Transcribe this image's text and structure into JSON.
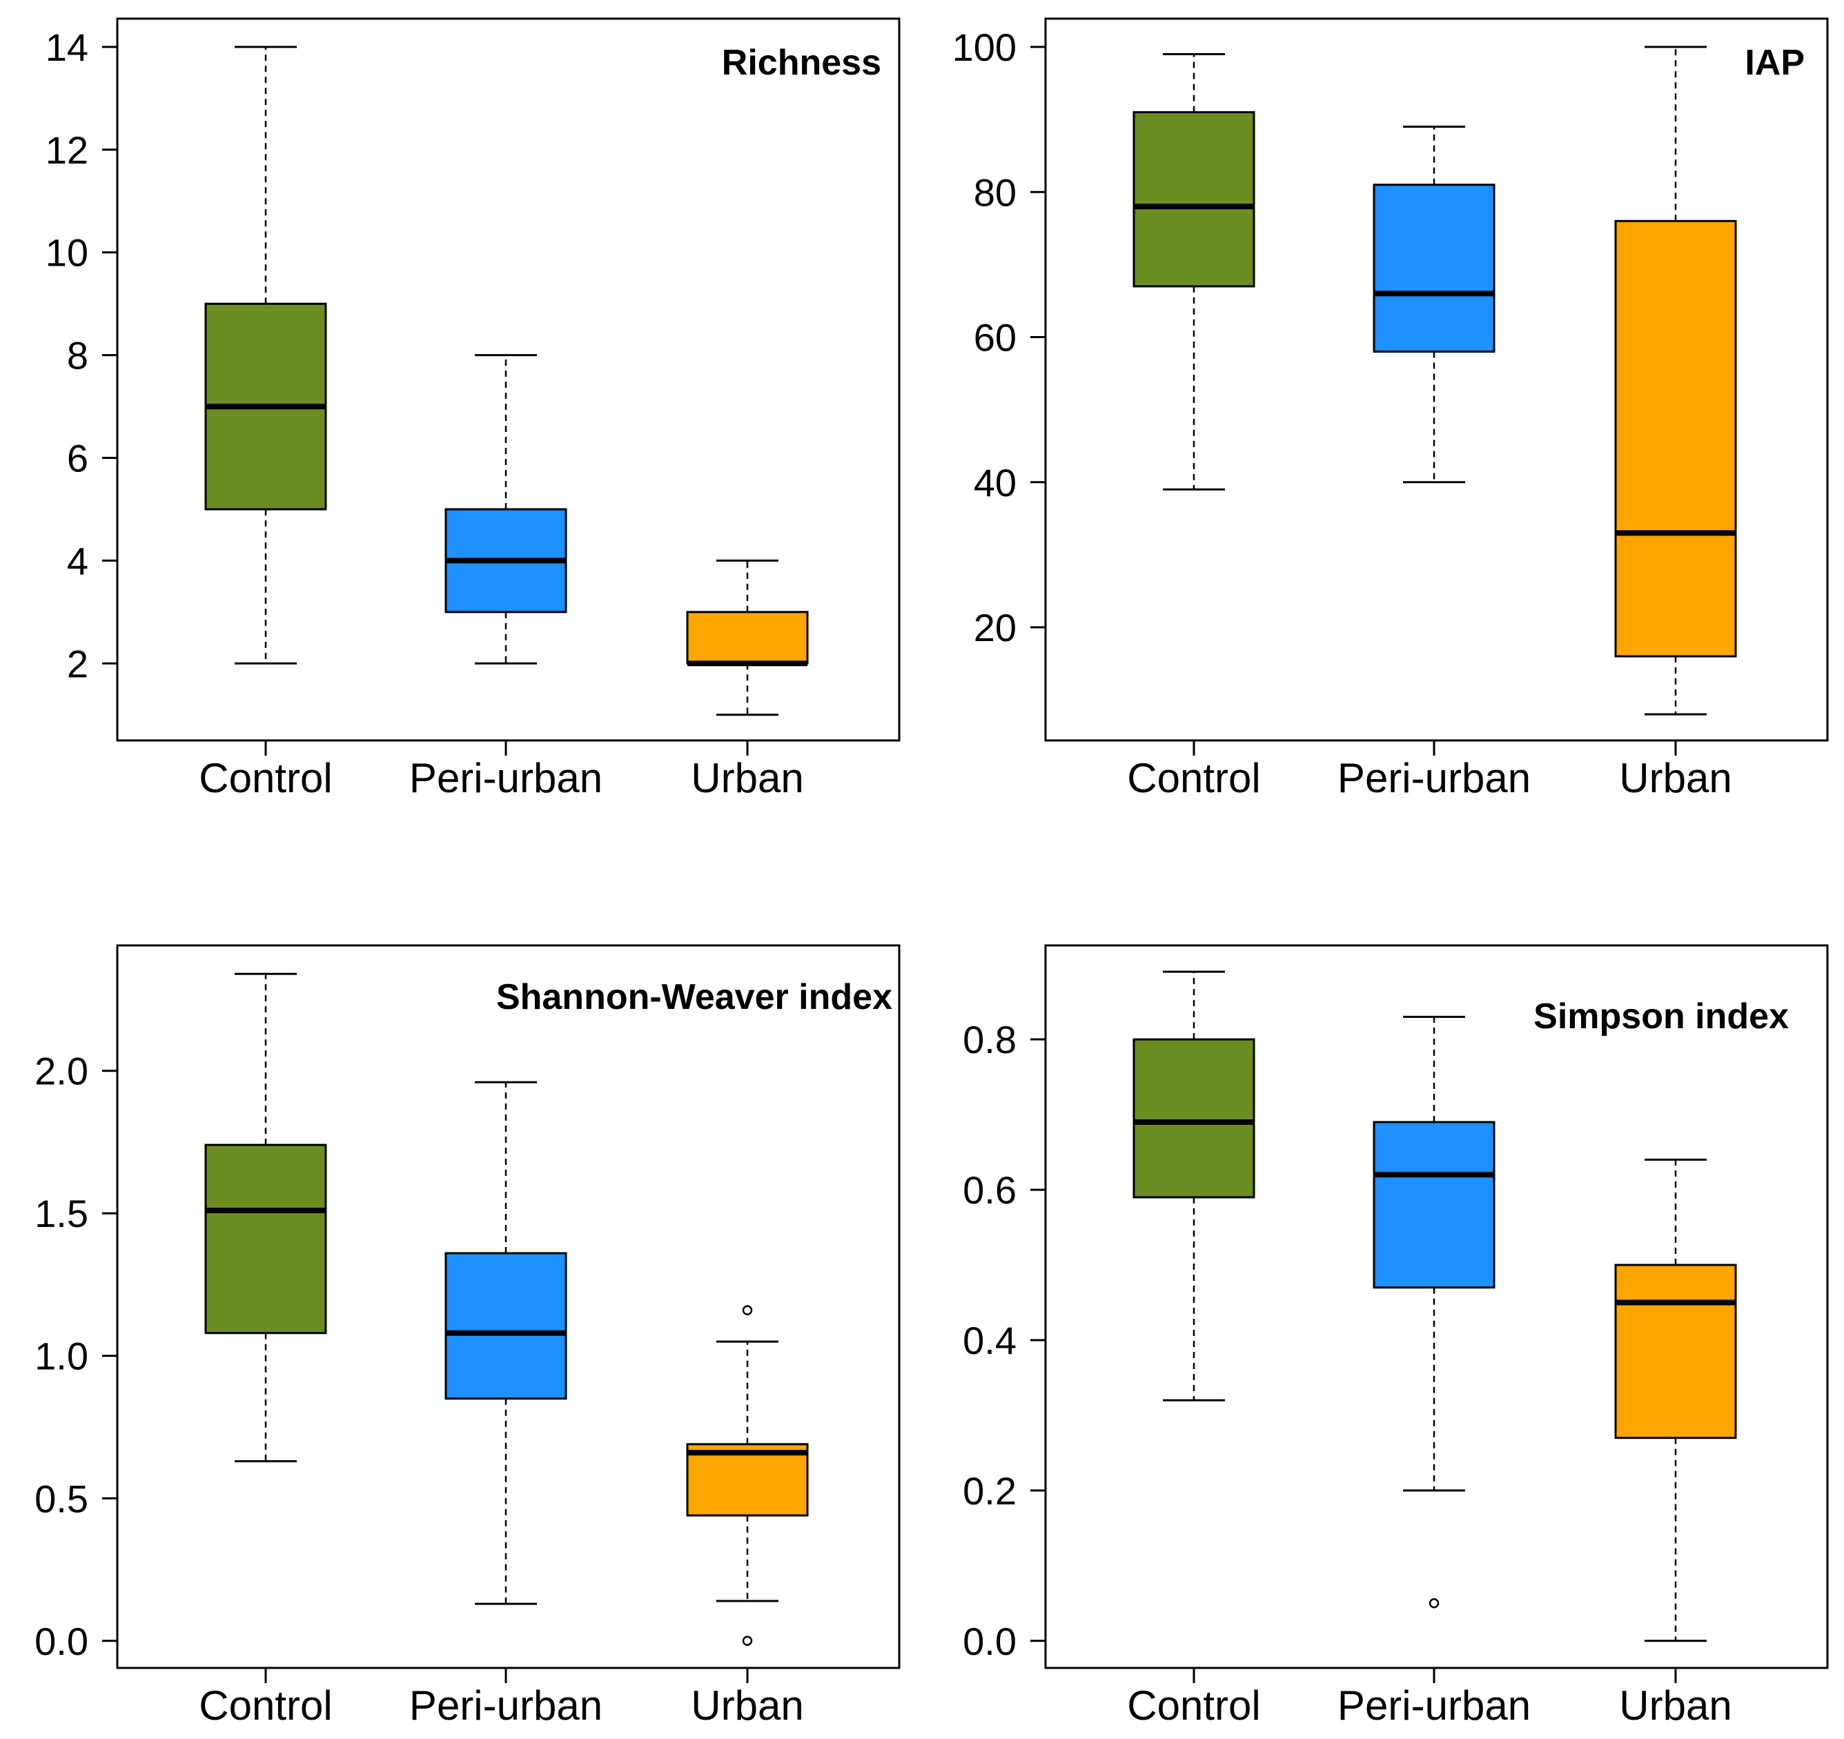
{
  "chart_data": [
    {
      "type": "boxplot",
      "title": "Richness",
      "categories": [
        "Control",
        "Peri-urban",
        "Urban"
      ],
      "yticks": [
        2,
        4,
        6,
        8,
        10,
        12,
        14
      ],
      "ytick_labels": [
        "2",
        "4",
        "6",
        "8",
        "10",
        "12",
        "14"
      ],
      "ylim": [
        0.5,
        14.55
      ],
      "boxes": [
        {
          "category": "Control",
          "whisker_low": 2,
          "q1": 5,
          "median": 7,
          "q3": 9,
          "whisker_high": 14,
          "outliers": [],
          "color": "#6b8e23"
        },
        {
          "category": "Peri-urban",
          "whisker_low": 2,
          "q1": 3,
          "median": 4,
          "q3": 5,
          "whisker_high": 8,
          "outliers": [],
          "color": "#1e90ff"
        },
        {
          "category": "Urban",
          "whisker_low": 1,
          "q1": 2,
          "median": 2,
          "q3": 3,
          "whisker_high": 4,
          "outliers": [],
          "color": "#ffa500"
        }
      ]
    },
    {
      "type": "boxplot",
      "title": "IAP",
      "categories": [
        "Control",
        "Peri-urban",
        "Urban"
      ],
      "yticks": [
        20,
        40,
        60,
        80,
        100
      ],
      "ytick_labels": [
        "20",
        "40",
        "60",
        "80",
        "100"
      ],
      "ylim": [
        4.4,
        103.9
      ],
      "boxes": [
        {
          "category": "Control",
          "whisker_low": 39,
          "q1": 67,
          "median": 78,
          "q3": 91,
          "whisker_high": 99,
          "outliers": [],
          "color": "#6b8e23"
        },
        {
          "category": "Peri-urban",
          "whisker_low": 40,
          "q1": 58,
          "median": 66,
          "q3": 81,
          "whisker_high": 89,
          "outliers": [],
          "color": "#1e90ff"
        },
        {
          "category": "Urban",
          "whisker_low": 8,
          "q1": 16,
          "median": 33,
          "q3": 76,
          "whisker_high": 100,
          "outliers": [],
          "color": "#ffa500"
        }
      ]
    },
    {
      "type": "boxplot",
      "title": "Shannon-Weaver index",
      "categories": [
        "Control",
        "Peri-urban",
        "Urban"
      ],
      "yticks": [
        0.0,
        0.5,
        1.0,
        1.5,
        2.0
      ],
      "ytick_labels": [
        "0.0",
        "0.5",
        "1.0",
        "1.5",
        "2.0"
      ],
      "ylim": [
        -0.095,
        2.44
      ],
      "boxes": [
        {
          "category": "Control",
          "whisker_low": 0.63,
          "q1": 1.08,
          "median": 1.51,
          "q3": 1.74,
          "whisker_high": 2.34,
          "outliers": [],
          "color": "#6b8e23"
        },
        {
          "category": "Peri-urban",
          "whisker_low": 0.13,
          "q1": 0.85,
          "median": 1.08,
          "q3": 1.36,
          "whisker_high": 1.96,
          "outliers": [],
          "color": "#1e90ff"
        },
        {
          "category": "Urban",
          "whisker_low": 0.14,
          "q1": 0.44,
          "median": 0.66,
          "q3": 0.69,
          "whisker_high": 1.05,
          "outliers": [
            1.16,
            0.0
          ],
          "color": "#ffa500"
        }
      ]
    },
    {
      "type": "boxplot",
      "title": "Simpson index",
      "categories": [
        "Control",
        "Peri-urban",
        "Urban"
      ],
      "yticks": [
        0.0,
        0.2,
        0.4,
        0.6,
        0.8
      ],
      "ytick_labels": [
        "0.0",
        "0.2",
        "0.4",
        "0.6",
        "0.8"
      ],
      "ylim": [
        -0.036,
        0.925
      ],
      "boxes": [
        {
          "category": "Control",
          "whisker_low": 0.32,
          "q1": 0.59,
          "median": 0.69,
          "q3": 0.8,
          "whisker_high": 0.89,
          "outliers": [],
          "color": "#6b8e23"
        },
        {
          "category": "Peri-urban",
          "whisker_low": 0.2,
          "q1": 0.47,
          "median": 0.62,
          "q3": 0.69,
          "whisker_high": 0.83,
          "outliers": [
            0.05
          ],
          "color": "#1e90ff"
        },
        {
          "category": "Urban",
          "whisker_low": 0.0,
          "q1": 0.27,
          "median": 0.45,
          "q3": 0.5,
          "whisker_high": 0.64,
          "outliers": [],
          "color": "#ffa500"
        }
      ]
    }
  ]
}
